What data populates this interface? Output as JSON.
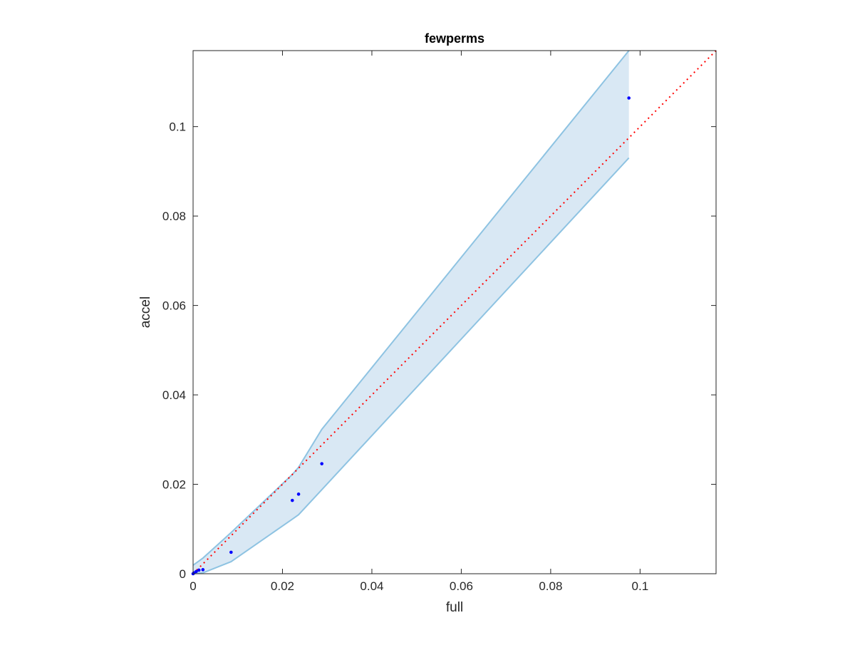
{
  "chart_data": {
    "type": "scatter",
    "title": "fewperms",
    "xlabel": "full",
    "ylabel": "accel",
    "xlim": [
      0,
      0.117
    ],
    "ylim": [
      0,
      0.117
    ],
    "xticks": [
      0,
      0.02,
      0.04,
      0.06,
      0.08,
      0.1
    ],
    "xtick_labels": [
      "0",
      "0.02",
      "0.04",
      "0.06",
      "0.08",
      "0.1"
    ],
    "yticks": [
      0,
      0.02,
      0.04,
      0.06,
      0.08,
      0.1
    ],
    "ytick_labels": [
      "0",
      "0.02",
      "0.04",
      "0.06",
      "0.08",
      "0.1"
    ],
    "grid": false,
    "legend": false,
    "points": {
      "color": "#0000ff",
      "x": [
        0.0,
        0.0002,
        0.0007,
        0.0013,
        0.0022,
        0.0085,
        0.0222,
        0.0236,
        0.0288,
        0.0975
      ],
      "y": [
        0.0,
        0.0002,
        0.0005,
        0.0008,
        0.0009,
        0.0048,
        0.0164,
        0.0178,
        0.0246,
        0.1064
      ]
    },
    "band": {
      "fill": "#d9e8f4",
      "edge": "#8ec3e2",
      "x": [
        0.0,
        0.0022,
        0.0085,
        0.0222,
        0.0236,
        0.0288,
        0.0975
      ],
      "upper": [
        0.0019,
        0.0035,
        0.0092,
        0.0222,
        0.0238,
        0.0323,
        0.117
      ],
      "lower": [
        0.0,
        0.0002,
        0.0027,
        0.0122,
        0.0132,
        0.0188,
        0.093
      ]
    },
    "reference_line": {
      "style": "dotted",
      "color": "#ff0000",
      "x": [
        0,
        0.117
      ],
      "y": [
        0,
        0.117
      ]
    }
  }
}
